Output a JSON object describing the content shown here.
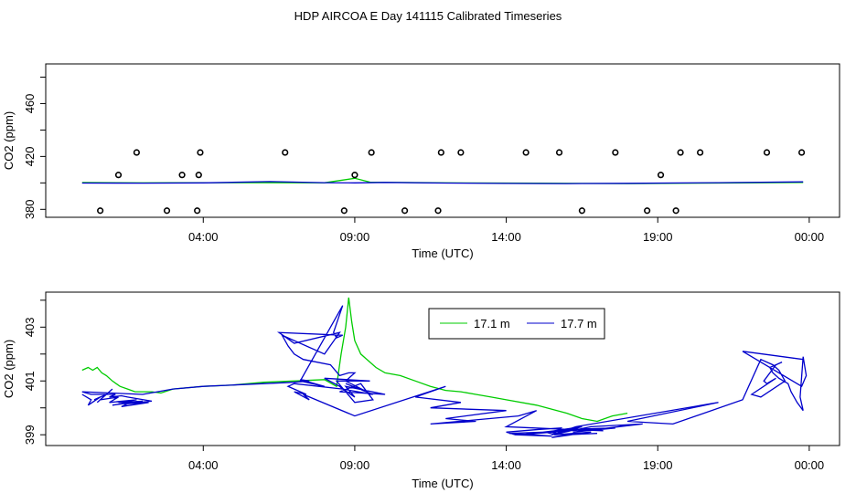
{
  "figure": {
    "title": "HDP AIRCOA E  Day 141115  Calibrated Timeseries"
  },
  "chart_data": [
    {
      "type": "scatter",
      "xlabel": "Time (UTC)",
      "ylabel": "CO2 (ppm)",
      "x_ticks": [
        "04:00",
        "09:00",
        "14:00",
        "19:00",
        "00:00"
      ],
      "x_tick_hours": [
        4,
        9,
        14,
        19,
        24
      ],
      "xlim_hours": [
        -1.2,
        25.0
      ],
      "y_ticks": [
        380,
        420,
        460
      ],
      "y_minor_ticks": [
        380,
        400,
        420,
        440,
        460,
        480
      ],
      "ylim": [
        374,
        490
      ],
      "grid": false,
      "points": [
        {
          "x": 0.6,
          "y": 379
        },
        {
          "x": 1.2,
          "y": 406
        },
        {
          "x": 1.8,
          "y": 423
        },
        {
          "x": 2.8,
          "y": 379
        },
        {
          "x": 3.3,
          "y": 406
        },
        {
          "x": 3.8,
          "y": 379
        },
        {
          "x": 3.85,
          "y": 406
        },
        {
          "x": 3.9,
          "y": 423
        },
        {
          "x": 6.7,
          "y": 423
        },
        {
          "x": 8.65,
          "y": 379
        },
        {
          "x": 9.0,
          "y": 406
        },
        {
          "x": 9.55,
          "y": 423
        },
        {
          "x": 10.65,
          "y": 379
        },
        {
          "x": 11.75,
          "y": 379
        },
        {
          "x": 11.85,
          "y": 423
        },
        {
          "x": 12.5,
          "y": 423
        },
        {
          "x": 14.65,
          "y": 423
        },
        {
          "x": 15.75,
          "y": 423
        },
        {
          "x": 16.5,
          "y": 379
        },
        {
          "x": 17.6,
          "y": 423
        },
        {
          "x": 18.65,
          "y": 379
        },
        {
          "x": 19.1,
          "y": 406
        },
        {
          "x": 19.6,
          "y": 379
        },
        {
          "x": 19.75,
          "y": 423
        },
        {
          "x": 20.4,
          "y": 423
        },
        {
          "x": 22.6,
          "y": 423
        },
        {
          "x": 23.75,
          "y": 423
        }
      ],
      "series": [
        {
          "name": "17.1 m",
          "color": "#00cc00",
          "x": [
            0.0,
            2.0,
            3.0,
            6.0,
            8.0,
            9.0,
            9.5,
            12.0,
            15.0,
            18.0,
            21.0,
            23.8
          ],
          "y": [
            400.3,
            400.0,
            400.1,
            400.2,
            400.1,
            403.5,
            400.6,
            400.0,
            399.8,
            399.5,
            399.9,
            400.3
          ]
        },
        {
          "name": "17.7 m",
          "color": "#0000cc",
          "x": [
            0.0,
            2.0,
            4.0,
            6.2,
            8.0,
            9.0,
            10.0,
            12.0,
            14.0,
            16.0,
            18.0,
            21.0,
            23.8
          ],
          "y": [
            399.9,
            399.8,
            400.0,
            401.0,
            400.2,
            400.0,
            400.4,
            399.9,
            399.6,
            399.5,
            399.7,
            400.2,
            400.8
          ]
        }
      ]
    },
    {
      "type": "line",
      "xlabel": "Time (UTC)",
      "ylabel": "CO2 (ppm)",
      "x_ticks": [
        "04:00",
        "09:00",
        "14:00",
        "19:00",
        "00:00"
      ],
      "x_tick_hours": [
        4,
        9,
        14,
        19,
        24
      ],
      "xlim_hours": [
        -1.2,
        25.0
      ],
      "y_ticks": [
        399,
        401,
        403
      ],
      "y_minor_ticks": [
        399,
        400,
        401,
        402,
        403,
        404
      ],
      "ylim": [
        398.6,
        404.3
      ],
      "legend": "top-center",
      "grid": false,
      "series": [
        {
          "name": "17.1 m",
          "color": "#00cc00",
          "x": [
            0.0,
            0.2,
            0.35,
            0.5,
            0.65,
            0.8,
            1.0,
            1.25,
            1.5,
            1.75,
            2.0,
            2.3,
            2.6,
            3.0,
            4.0,
            5.0,
            6.0,
            7.0,
            8.0,
            8.4,
            8.55,
            8.7,
            8.8,
            8.9,
            9.0,
            9.2,
            9.4,
            9.7,
            10.0,
            10.5,
            11.0,
            11.5,
            12.0,
            12.5,
            13.0,
            13.5,
            14.0,
            15.0,
            16.0,
            16.5,
            17.0,
            17.5,
            18.0
          ],
          "y": [
            401.4,
            401.5,
            401.4,
            401.5,
            401.3,
            401.2,
            401.0,
            400.8,
            400.7,
            400.6,
            400.6,
            400.6,
            400.55,
            400.7,
            400.8,
            400.85,
            400.95,
            401.0,
            401.05,
            400.8,
            402.0,
            403.0,
            404.1,
            403.2,
            402.5,
            402.0,
            401.8,
            401.5,
            401.3,
            401.2,
            401.0,
            400.8,
            400.65,
            400.6,
            400.5,
            400.4,
            400.3,
            400.1,
            399.8,
            399.6,
            399.5,
            399.7,
            399.8
          ]
        },
        {
          "name": "17.7 m",
          "color": "#0000cc",
          "x": [
            0.0,
            0.3,
            0.2,
            0.6,
            0.4,
            0.8,
            0.5,
            1.0,
            0.6,
            1.2,
            0.9,
            1.8,
            1.2,
            2.0,
            1.0,
            1.6,
            1.3,
            2.2,
            1.4,
            2.3,
            1.5,
            1.3,
            0.9,
            1.1,
            0.3,
            0.0,
            2.0,
            3.0,
            4.0,
            5.0,
            6.0,
            7.0,
            7.5,
            7.2,
            8.0,
            7.2,
            8.6,
            8.3,
            8.4,
            8.6,
            6.5,
            7.0,
            8.5,
            8.0,
            6.6,
            6.8,
            7.0,
            7.3,
            8.2,
            8.5,
            8.8,
            9.0,
            8.7,
            9.4,
            8.7,
            9.6,
            8.6,
            9.0,
            8.7,
            10.0,
            8.5,
            9.2,
            9.6,
            9.0,
            8.4,
            9.5,
            8.0,
            8.5,
            8.6,
            7.0,
            6.8,
            7.4,
            7.0,
            7.5,
            7.3,
            9.0,
            12.0,
            11.0,
            12.5,
            11.5,
            14.0,
            12.0,
            13.0,
            11.5,
            14.4,
            15.0,
            14.0,
            16.0,
            14.5,
            15.5,
            16.0,
            17.0,
            16.0,
            15.5,
            16.8,
            15.6,
            15.3,
            14.1,
            15.5,
            14.3,
            14.0,
            15.1,
            15.8,
            15.5,
            16.5,
            15.3,
            16.8,
            17.2,
            16.0,
            17.6,
            16.2,
            18.5,
            16.8,
            15.5,
            16.3,
            21.0,
            18.0,
            19.5,
            21.8,
            22.4,
            22.8,
            23.0,
            23.2,
            22.4,
            22.1,
            22.9,
            22.6,
            22.5,
            22.9,
            23.1,
            22.7,
            22.8,
            23.0,
            23.3,
            23.4,
            23.6,
            23.8,
            23.7,
            23.8,
            23.9,
            23.75,
            21.8,
            23.8
          ],
          "y": [
            400.5,
            400.3,
            400.1,
            400.4,
            400.3,
            400.5,
            400.2,
            400.7,
            400.3,
            400.4,
            400.2,
            400.3,
            400.2,
            400.25,
            400.1,
            400.2,
            400.05,
            400.2,
            400.15,
            400.25,
            400.4,
            400.45,
            400.4,
            400.5,
            400.5,
            400.6,
            400.5,
            400.7,
            400.8,
            400.85,
            400.9,
            400.95,
            401.0,
            401.05,
            400.8,
            401.0,
            403.8,
            402.8,
            402.6,
            402.7,
            402.8,
            402.4,
            402.8,
            402.0,
            402.7,
            402.3,
            402.0,
            401.8,
            401.6,
            401.2,
            401.3,
            401.3,
            401.0,
            400.6,
            400.9,
            400.5,
            400.7,
            400.4,
            400.8,
            400.5,
            400.6,
            400.9,
            400.3,
            400.2,
            401.0,
            401.0,
            401.1,
            400.8,
            400.7,
            400.9,
            400.8,
            400.5,
            400.6,
            400.3,
            400.5,
            399.7,
            400.8,
            400.4,
            400.2,
            400.0,
            399.9,
            399.6,
            399.5,
            399.4,
            399.7,
            399.9,
            399.3,
            399.2,
            399.0,
            399.1,
            399.0,
            399.05,
            399.0,
            398.9,
            399.1,
            399.0,
            399.1,
            399.05,
            398.95,
            399.0,
            399.1,
            399.2,
            399.25,
            399.0,
            399.3,
            399.1,
            399.2,
            399.15,
            399.2,
            399.25,
            399.1,
            399.4,
            399.3,
            399.0,
            399.3,
            400.2,
            399.5,
            399.4,
            400.3,
            401.8,
            401.6,
            401.4,
            401.0,
            400.4,
            400.5,
            401.1,
            400.9,
            401.0,
            401.6,
            401.7,
            401.5,
            401.3,
            401.1,
            400.9,
            400.6,
            400.2,
            399.9,
            400.4,
            401.9,
            401.2,
            400.8,
            402.1,
            401.8
          ]
        }
      ]
    }
  ]
}
